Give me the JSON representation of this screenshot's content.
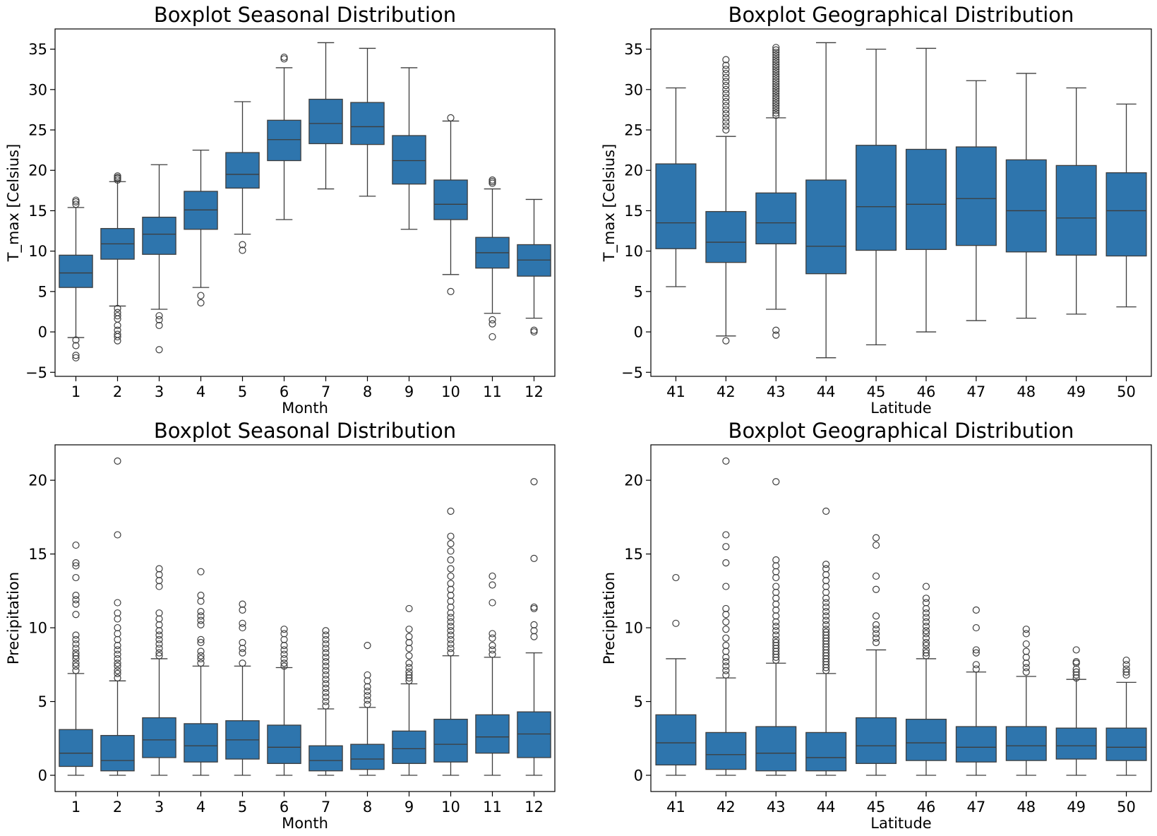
{
  "colors": {
    "box": "#2e75ad",
    "line": "#3d3d3d",
    "axis": "#000000"
  },
  "chart_data": [
    {
      "type": "boxplot",
      "title": "Boxplot Seasonal Distribution",
      "xlabel": "Month",
      "ylabel": "T_max [Celsius]",
      "ylim": [
        -5.5,
        37.5
      ],
      "yticks": [
        -5,
        0,
        5,
        10,
        15,
        20,
        25,
        30,
        35
      ],
      "categories": [
        "1",
        "2",
        "3",
        "4",
        "5",
        "6",
        "7",
        "8",
        "9",
        "10",
        "11",
        "12"
      ],
      "boxes": [
        {
          "whislo": -0.7,
          "q1": 5.5,
          "med": 7.3,
          "q3": 9.5,
          "whishi": 15.4,
          "fliers": [
            15.8,
            16.1,
            16.3,
            -1.0,
            -1.7,
            -2.9,
            -3.2
          ]
        },
        {
          "whislo": 3.2,
          "q1": 9.0,
          "med": 10.9,
          "q3": 12.8,
          "whishi": 18.6,
          "fliers": [
            18.8,
            19.0,
            19.1,
            19.3,
            2.9,
            2.4,
            2.0,
            1.6,
            0.8,
            0.2,
            -0.3,
            -0.6,
            -1.1
          ]
        },
        {
          "whislo": 2.8,
          "q1": 9.6,
          "med": 12.1,
          "q3": 14.2,
          "whishi": 20.7,
          "fliers": [
            2.0,
            1.5,
            0.8,
            -2.2
          ]
        },
        {
          "whislo": 5.5,
          "q1": 12.7,
          "med": 15.1,
          "q3": 17.4,
          "whishi": 22.5,
          "fliers": [
            4.5,
            3.6
          ]
        },
        {
          "whislo": 12.1,
          "q1": 17.8,
          "med": 19.5,
          "q3": 22.2,
          "whishi": 28.5,
          "fliers": [
            10.8,
            10.1
          ]
        },
        {
          "whislo": 13.9,
          "q1": 21.2,
          "med": 23.8,
          "q3": 26.2,
          "whishi": 32.7,
          "fliers": [
            33.8,
            34.0
          ]
        },
        {
          "whislo": 17.7,
          "q1": 23.3,
          "med": 25.8,
          "q3": 28.8,
          "whishi": 35.8,
          "fliers": []
        },
        {
          "whislo": 16.8,
          "q1": 23.2,
          "med": 25.4,
          "q3": 28.4,
          "whishi": 35.1,
          "fliers": []
        },
        {
          "whislo": 12.7,
          "q1": 18.3,
          "med": 21.2,
          "q3": 24.3,
          "whishi": 32.7,
          "fliers": []
        },
        {
          "whislo": 7.1,
          "q1": 13.9,
          "med": 15.8,
          "q3": 18.8,
          "whishi": 26.1,
          "fliers": [
            26.5,
            5.0
          ]
        },
        {
          "whislo": 2.3,
          "q1": 7.9,
          "med": 9.8,
          "q3": 11.7,
          "whishi": 17.7,
          "fliers": [
            18.4,
            18.6,
            18.8,
            1.5,
            1.0,
            -0.6
          ]
        },
        {
          "whislo": 1.7,
          "q1": 6.9,
          "med": 8.9,
          "q3": 10.8,
          "whishi": 16.4,
          "fliers": [
            0.2,
            0.0
          ]
        }
      ]
    },
    {
      "type": "boxplot",
      "title": "Boxplot Geographical Distribution",
      "xlabel": "Latitude",
      "ylabel": "T_max [Celsius]",
      "ylim": [
        -5.5,
        37.5
      ],
      "yticks": [
        -5,
        0,
        5,
        10,
        15,
        20,
        25,
        30,
        35
      ],
      "categories": [
        "41",
        "42",
        "43",
        "44",
        "45",
        "46",
        "47",
        "48",
        "49",
        "50"
      ],
      "boxes": [
        {
          "whislo": 5.6,
          "q1": 10.3,
          "med": 13.5,
          "q3": 20.8,
          "whishi": 30.2,
          "fliers": []
        },
        {
          "whislo": -0.5,
          "q1": 8.6,
          "med": 11.1,
          "q3": 14.9,
          "whishi": 24.2,
          "fliers": [
            25.0,
            25.5,
            26.0,
            26.5,
            27.0,
            27.5,
            28.0,
            28.5,
            29.0,
            29.5,
            30.0,
            30.5,
            31.0,
            31.5,
            32.0,
            32.5,
            33.0,
            33.7,
            -1.1
          ]
        },
        {
          "whislo": 2.8,
          "q1": 10.9,
          "med": 13.5,
          "q3": 17.2,
          "whishi": 26.5,
          "fliers": [
            26.8,
            27.1,
            27.4,
            27.7,
            28.0,
            28.3,
            28.6,
            28.9,
            29.2,
            29.5,
            29.8,
            30.1,
            30.4,
            30.7,
            31.0,
            31.3,
            31.6,
            31.9,
            32.2,
            32.5,
            32.8,
            33.1,
            33.4,
            33.7,
            34.0,
            34.3,
            34.6,
            34.9,
            35.2,
            0.2,
            -0.4
          ]
        },
        {
          "whislo": -3.2,
          "q1": 7.2,
          "med": 10.6,
          "q3": 18.8,
          "whishi": 35.8,
          "fliers": []
        },
        {
          "whislo": -1.6,
          "q1": 10.1,
          "med": 15.5,
          "q3": 23.1,
          "whishi": 35.0,
          "fliers": []
        },
        {
          "whislo": 0.0,
          "q1": 10.2,
          "med": 15.8,
          "q3": 22.6,
          "whishi": 35.1,
          "fliers": []
        },
        {
          "whislo": 1.4,
          "q1": 10.7,
          "med": 16.5,
          "q3": 22.9,
          "whishi": 31.1,
          "fliers": []
        },
        {
          "whislo": 1.7,
          "q1": 9.9,
          "med": 15.0,
          "q3": 21.3,
          "whishi": 32.0,
          "fliers": []
        },
        {
          "whislo": 2.2,
          "q1": 9.5,
          "med": 14.1,
          "q3": 20.6,
          "whishi": 30.2,
          "fliers": []
        },
        {
          "whislo": 3.1,
          "q1": 9.4,
          "med": 15.0,
          "q3": 19.7,
          "whishi": 28.2,
          "fliers": []
        }
      ]
    },
    {
      "type": "boxplot",
      "title": "Boxplot Seasonal Distribution",
      "xlabel": "Month",
      "ylabel": "Precipitation",
      "ylim": [
        -1.1,
        22.4
      ],
      "yticks": [
        0,
        5,
        10,
        15,
        20
      ],
      "categories": [
        "1",
        "2",
        "3",
        "4",
        "5",
        "6",
        "7",
        "8",
        "9",
        "10",
        "11",
        "12"
      ],
      "boxes": [
        {
          "whislo": 0,
          "q1": 0.6,
          "med": 1.5,
          "q3": 3.1,
          "whishi": 6.9,
          "fliers": [
            7.1,
            7.4,
            7.6,
            7.9,
            8.1,
            8.3,
            8.6,
            8.9,
            9.2,
            9.5,
            10.9,
            11.6,
            11.9,
            12.2,
            13.4,
            14.2,
            14.4,
            15.6
          ]
        },
        {
          "whislo": 0,
          "q1": 0.3,
          "med": 1.0,
          "q3": 2.7,
          "whishi": 6.4,
          "fliers": [
            6.6,
            6.9,
            7.1,
            7.4,
            7.6,
            7.9,
            8.2,
            8.5,
            8.8,
            9.2,
            9.6,
            10.0,
            10.6,
            11.0,
            11.7,
            16.3,
            21.3
          ]
        },
        {
          "whislo": 0,
          "q1": 1.2,
          "med": 2.4,
          "q3": 3.9,
          "whishi": 7.9,
          "fliers": [
            8.1,
            8.3,
            8.6,
            8.9,
            9.2,
            9.5,
            9.8,
            10.2,
            10.6,
            11.0,
            12.8,
            13.2,
            13.6,
            14.0
          ]
        },
        {
          "whislo": 0,
          "q1": 0.9,
          "med": 2.0,
          "q3": 3.5,
          "whishi": 7.4,
          "fliers": [
            7.6,
            7.9,
            8.1,
            8.4,
            9.0,
            9.2,
            10.2,
            10.5,
            10.8,
            11.1,
            11.8,
            12.2,
            13.8
          ]
        },
        {
          "whislo": 0,
          "q1": 1.1,
          "med": 2.4,
          "q3": 3.7,
          "whishi": 7.4,
          "fliers": [
            7.6,
            8.3,
            8.6,
            9.0,
            10.0,
            10.3,
            11.2,
            11.6
          ]
        },
        {
          "whislo": 0,
          "q1": 0.8,
          "med": 1.9,
          "q3": 3.4,
          "whishi": 7.3,
          "fliers": [
            7.4,
            7.6,
            7.9,
            8.2,
            8.5,
            8.8,
            9.2,
            9.6,
            9.9
          ]
        },
        {
          "whislo": 0,
          "q1": 0.3,
          "med": 1.0,
          "q3": 2.0,
          "whishi": 4.5,
          "fliers": [
            4.7,
            5.0,
            5.3,
            5.6,
            5.9,
            6.2,
            6.5,
            6.8,
            7.1,
            7.4,
            7.7,
            8.0,
            8.3,
            8.6,
            8.9,
            9.2,
            9.5,
            9.8
          ]
        },
        {
          "whislo": 0,
          "q1": 0.4,
          "med": 1.1,
          "q3": 2.1,
          "whishi": 4.6,
          "fliers": [
            4.8,
            5.1,
            5.4,
            5.7,
            6.0,
            6.4,
            6.8,
            8.8
          ]
        },
        {
          "whislo": 0,
          "q1": 0.8,
          "med": 1.8,
          "q3": 3.0,
          "whishi": 6.2,
          "fliers": [
            6.4,
            6.6,
            6.8,
            7.0,
            7.3,
            7.6,
            8.1,
            8.6,
            9.0,
            9.4,
            9.9,
            11.3
          ]
        },
        {
          "whislo": 0,
          "q1": 0.9,
          "med": 2.1,
          "q3": 3.8,
          "whishi": 8.1,
          "fliers": [
            8.3,
            8.6,
            8.9,
            9.2,
            9.5,
            9.8,
            10.1,
            10.4,
            10.7,
            11.0,
            11.4,
            11.8,
            12.2,
            12.6,
            13.0,
            13.5,
            14.0,
            14.6,
            15.2,
            15.7,
            16.2,
            17.9
          ]
        },
        {
          "whislo": 0,
          "q1": 1.5,
          "med": 2.6,
          "q3": 4.1,
          "whishi": 8.0,
          "fliers": [
            8.2,
            8.5,
            8.8,
            9.3,
            9.6,
            11.7,
            12.9,
            13.5
          ]
        },
        {
          "whislo": 0,
          "q1": 1.2,
          "med": 2.8,
          "q3": 4.3,
          "whishi": 8.3,
          "fliers": [
            9.4,
            9.8,
            10.2,
            11.3,
            11.4,
            14.7,
            19.9
          ]
        }
      ]
    },
    {
      "type": "boxplot",
      "title": "Boxplot Geographical Distribution",
      "xlabel": "Latitude",
      "ylabel": "Precipitation",
      "ylim": [
        -1.1,
        22.4
      ],
      "yticks": [
        0,
        5,
        10,
        15,
        20
      ],
      "categories": [
        "41",
        "42",
        "43",
        "44",
        "45",
        "46",
        "47",
        "48",
        "49",
        "50"
      ],
      "boxes": [
        {
          "whislo": 0,
          "q1": 0.7,
          "med": 2.2,
          "q3": 4.1,
          "whishi": 7.9,
          "fliers": [
            10.3,
            13.4
          ]
        },
        {
          "whislo": 0,
          "q1": 0.4,
          "med": 1.4,
          "q3": 2.9,
          "whishi": 6.6,
          "fliers": [
            6.8,
            7.1,
            7.4,
            7.7,
            8.0,
            8.4,
            8.8,
            9.3,
            9.9,
            10.4,
            10.9,
            11.3,
            12.8,
            14.4,
            15.5,
            16.3,
            21.3
          ]
        },
        {
          "whislo": 0,
          "q1": 0.3,
          "med": 1.5,
          "q3": 3.3,
          "whishi": 7.6,
          "fliers": [
            7.8,
            8.0,
            8.2,
            8.4,
            8.6,
            8.8,
            9.0,
            9.2,
            9.5,
            9.8,
            10.1,
            10.4,
            10.8,
            11.2,
            11.6,
            12.0,
            12.4,
            12.8,
            13.4,
            13.8,
            14.2,
            14.6,
            19.9
          ]
        },
        {
          "whislo": 0,
          "q1": 0.3,
          "med": 1.2,
          "q3": 2.9,
          "whishi": 6.9,
          "fliers": [
            7.1,
            7.3,
            7.5,
            7.7,
            7.9,
            8.1,
            8.3,
            8.5,
            8.7,
            8.9,
            9.1,
            9.3,
            9.5,
            9.7,
            9.9,
            10.2,
            10.5,
            10.8,
            11.1,
            11.4,
            11.7,
            12.0,
            12.4,
            12.8,
            13.2,
            13.6,
            14.0,
            14.3,
            17.9
          ]
        },
        {
          "whislo": 0,
          "q1": 0.8,
          "med": 2.0,
          "q3": 3.9,
          "whishi": 8.5,
          "fliers": [
            9.0,
            9.3,
            9.6,
            9.9,
            10.2,
            10.8,
            12.6,
            13.5,
            15.6,
            16.1
          ]
        },
        {
          "whislo": 0,
          "q1": 1.0,
          "med": 2.2,
          "q3": 3.8,
          "whishi": 7.9,
          "fliers": [
            8.1,
            8.3,
            8.5,
            8.8,
            9.0,
            9.3,
            9.6,
            9.8,
            10.1,
            10.4,
            10.7,
            11.0,
            11.3,
            11.7,
            12.0,
            12.8
          ]
        },
        {
          "whislo": 0,
          "q1": 0.9,
          "med": 1.9,
          "q3": 3.3,
          "whishi": 7.0,
          "fliers": [
            7.2,
            7.5,
            8.3,
            8.5,
            10.0,
            11.2
          ]
        },
        {
          "whislo": 0,
          "q1": 1.0,
          "med": 2.0,
          "q3": 3.3,
          "whishi": 6.7,
          "fliers": [
            7.0,
            7.3,
            7.6,
            8.0,
            8.4,
            8.9,
            9.6,
            9.9
          ]
        },
        {
          "whislo": 0,
          "q1": 1.1,
          "med": 2.0,
          "q3": 3.2,
          "whishi": 6.5,
          "fliers": [
            6.6,
            6.8,
            7.0,
            7.2,
            7.6,
            7.7,
            8.5
          ]
        },
        {
          "whislo": 0,
          "q1": 1.0,
          "med": 1.9,
          "q3": 3.2,
          "whishi": 6.3,
          "fliers": [
            6.8,
            7.0,
            7.2,
            7.5,
            7.8
          ]
        }
      ]
    }
  ]
}
